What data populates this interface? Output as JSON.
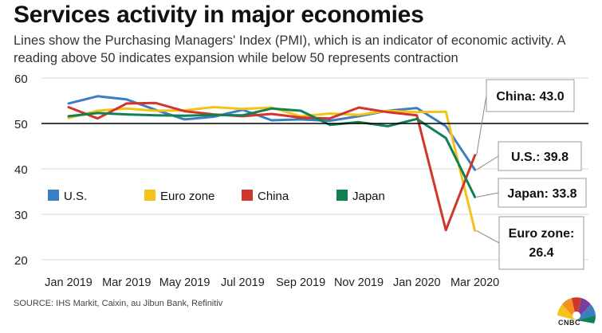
{
  "header": {
    "title": "Services activity in major economies",
    "subtitle": "Lines show the Purchasing Managers' Index (PMI), which is an indicator of economic activity. A reading above 50 indicates expansion while below 50 represents contraction"
  },
  "footer": {
    "source": "SOURCE: IHS Markit, Caixin, au Jibun Bank, Refinitiv",
    "logo_text": "CNBC"
  },
  "chart_data": {
    "type": "line",
    "title": "Services activity in major economies",
    "xlabel": "",
    "ylabel": "",
    "ylim": [
      20,
      60
    ],
    "yticks": [
      "20",
      "30",
      "40",
      "50",
      "60"
    ],
    "reference_line": 50,
    "x_tick_labels": [
      "Jan 2019",
      "Mar 2019",
      "May 2019",
      "Jul 2019",
      "Sep 2019",
      "Nov 2019",
      "Jan 2020",
      "Mar 2020"
    ],
    "categories": [
      "Jan 2019",
      "Feb 2019",
      "Mar 2019",
      "Apr 2019",
      "May 2019",
      "Jun 2019",
      "Jul 2019",
      "Aug 2019",
      "Sep 2019",
      "Oct 2019",
      "Nov 2019",
      "Dec 2019",
      "Jan 2020",
      "Feb 2020",
      "Mar 2020"
    ],
    "grid": "horizontal",
    "legend_position": "inside-left",
    "series": [
      {
        "name": "U.S.",
        "color": "#3a7fc1",
        "values": [
          54.4,
          56.0,
          55.3,
          53.0,
          50.9,
          51.5,
          53.0,
          50.7,
          50.9,
          50.6,
          51.6,
          52.8,
          53.4,
          49.4,
          39.8
        ]
      },
      {
        "name": "Euro zone",
        "color": "#f5c218",
        "values": [
          51.2,
          52.8,
          53.3,
          52.8,
          52.9,
          53.6,
          53.2,
          53.5,
          51.6,
          52.2,
          51.9,
          52.8,
          52.5,
          52.6,
          26.4
        ]
      },
      {
        "name": "China",
        "color": "#d1352b",
        "values": [
          53.6,
          51.1,
          54.4,
          54.5,
          52.7,
          52.0,
          51.6,
          52.1,
          51.3,
          51.1,
          53.5,
          52.5,
          51.8,
          26.5,
          43.0
        ]
      },
      {
        "name": "Japan",
        "color": "#118153",
        "values": [
          51.6,
          52.3,
          52.0,
          51.8,
          51.7,
          51.9,
          51.8,
          53.3,
          52.8,
          49.7,
          50.3,
          49.4,
          51.0,
          46.8,
          33.8
        ]
      }
    ],
    "callouts": [
      {
        "series": "China",
        "label": "China: 43.0"
      },
      {
        "series": "U.S.",
        "label": "U.S.: 39.8"
      },
      {
        "series": "Japan",
        "label": "Japan: 33.8"
      },
      {
        "series": "Euro zone",
        "label": "Euro zone: 26.4"
      }
    ]
  }
}
